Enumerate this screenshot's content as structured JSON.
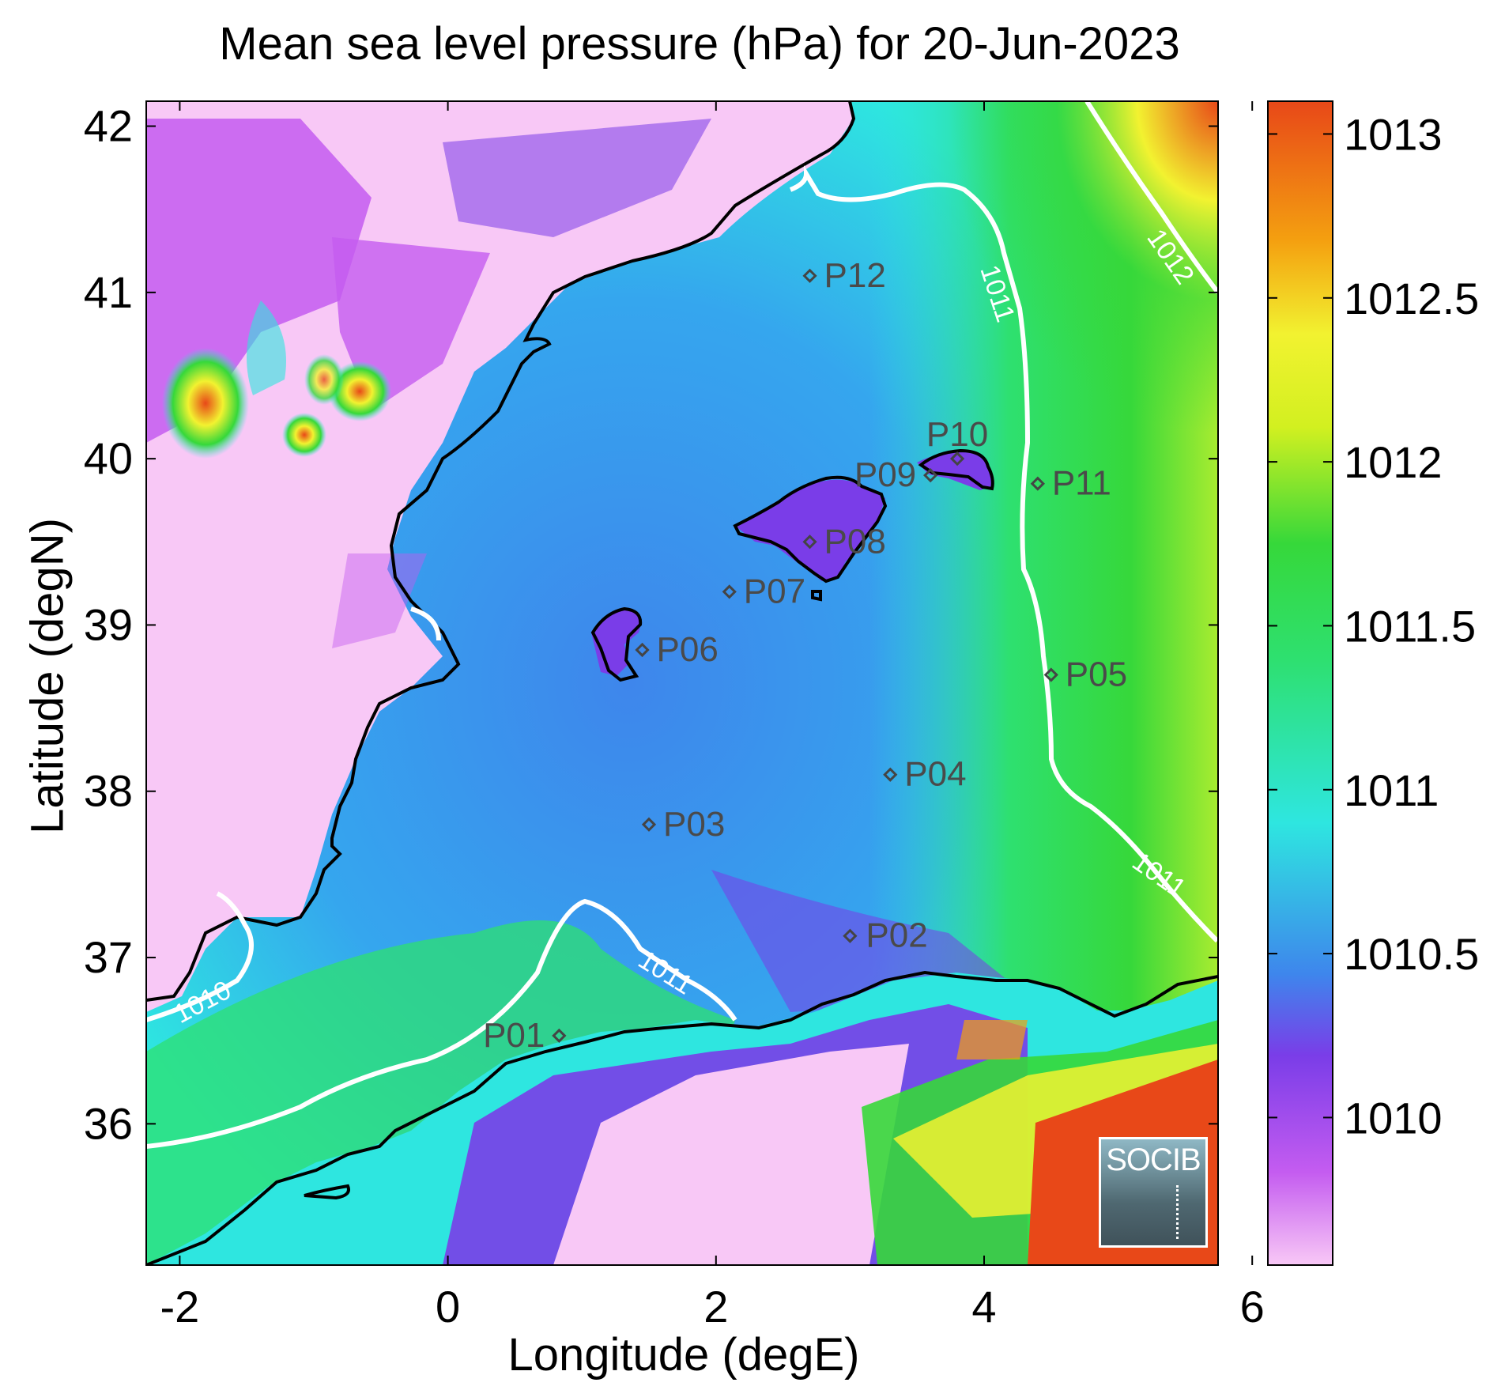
{
  "title": "Mean sea level pressure (hPa) for 20-Jun-2023",
  "x_axis": {
    "label": "Longitude (degE)",
    "ticks": [
      "-2",
      "0",
      "2",
      "4",
      "6"
    ]
  },
  "y_axis": {
    "label": "Latitude (degN)",
    "ticks": [
      "36",
      "37",
      "38",
      "39",
      "40",
      "41",
      "42"
    ]
  },
  "colorbar": {
    "ticks": [
      "1013",
      "1012.5",
      "1012",
      "1011.5",
      "1011",
      "1010.5",
      "1010"
    ],
    "colors": [
      "#f8c8f6",
      "#c45cf0",
      "#7a3de8",
      "#3e86ec",
      "#2ee6e0",
      "#2ee070",
      "#36d83a",
      "#d2f020",
      "#f2f230",
      "#f4a010",
      "#e84818"
    ]
  },
  "contour_labels": [
    "1010",
    "1011",
    "1011",
    "1011",
    "1012"
  ],
  "stations": [
    {
      "name": "P01"
    },
    {
      "name": "P02"
    },
    {
      "name": "P03"
    },
    {
      "name": "P04"
    },
    {
      "name": "P05"
    },
    {
      "name": "P06"
    },
    {
      "name": "P07"
    },
    {
      "name": "P08"
    },
    {
      "name": "P09"
    },
    {
      "name": "P10"
    },
    {
      "name": "P11"
    },
    {
      "name": "P12"
    }
  ],
  "logo": {
    "text": "SOCIB"
  }
}
